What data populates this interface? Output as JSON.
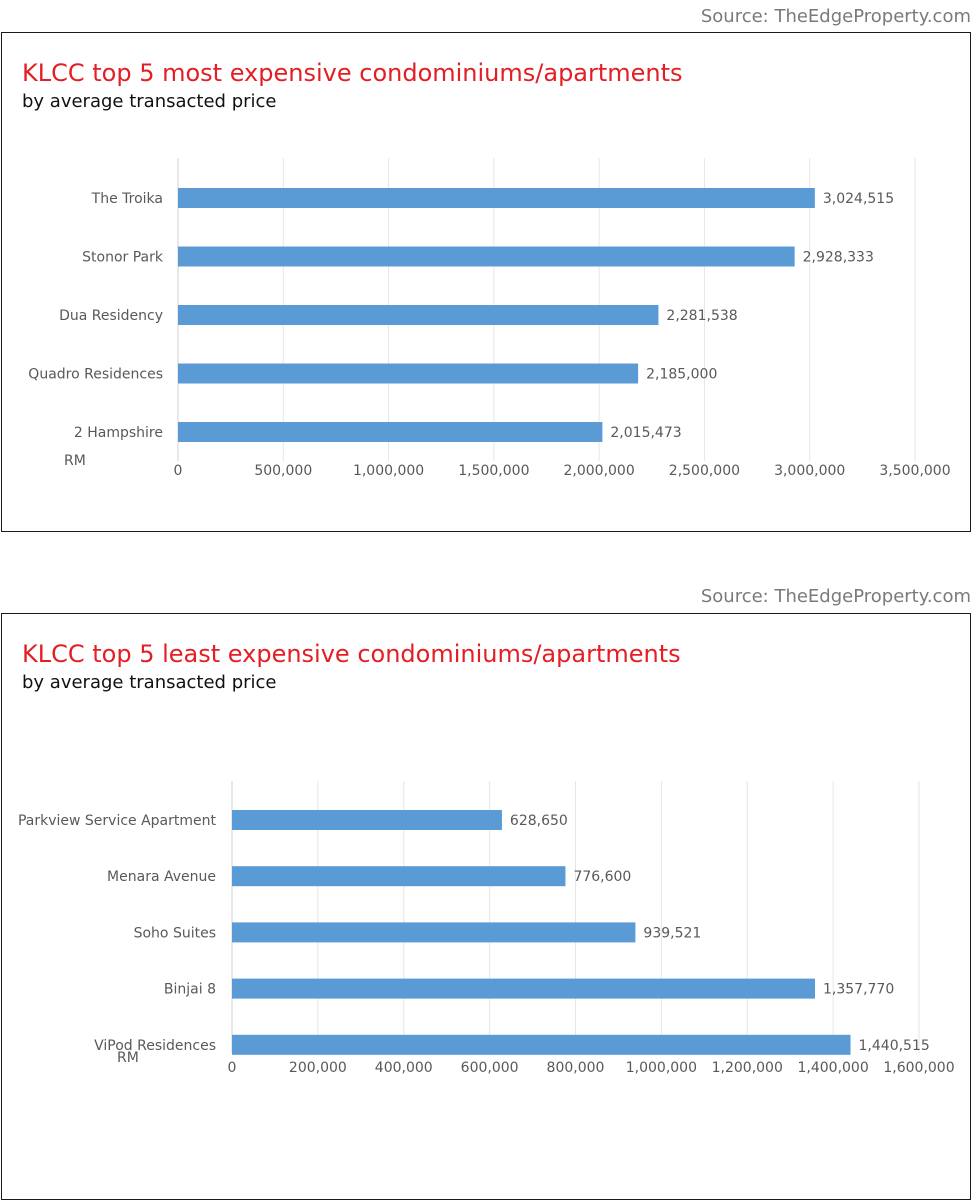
{
  "chart_data": [
    {
      "type": "bar",
      "orientation": "horizontal",
      "source": "Source: TheEdgeProperty.com",
      "title": "KLCC top 5 most expensive condominiums/apartments",
      "subtitle": "by average transacted price",
      "unit_label": "RM",
      "categories": [
        "The Troika",
        "Stonor Park",
        "Dua Residency",
        "Quadro Residences",
        "2 Hampshire"
      ],
      "values": [
        3024515,
        2928333,
        2281538,
        2185000,
        2015473
      ],
      "value_labels": [
        "3,024,515",
        "2,928,333",
        "2,281,538",
        "2,185,000",
        "2,015,473"
      ],
      "xlim": [
        0,
        3500000
      ],
      "ticks": [
        0,
        500000,
        1000000,
        1500000,
        2000000,
        2500000,
        3000000,
        3500000
      ],
      "tick_labels": [
        "0",
        "500,000",
        "1,000,000",
        "1,500,000",
        "2,000,000",
        "2,500,000",
        "3,000,000",
        "3,500,000"
      ],
      "grid": true,
      "bar_color": "#5b9bd5"
    },
    {
      "type": "bar",
      "orientation": "horizontal",
      "source": "Source: TheEdgeProperty.com",
      "title": "KLCC top 5 least expensive condominiums/apartments",
      "subtitle": "by average transacted price",
      "unit_label": "RM",
      "categories": [
        "Parkview Service Apartment",
        "Menara Avenue",
        "Soho Suites",
        "Binjai 8",
        "ViPod Residences"
      ],
      "values": [
        628650,
        776600,
        939521,
        1357770,
        1440515
      ],
      "value_labels": [
        "628,650",
        "776,600",
        "939,521",
        "1,357,770",
        "1,440,515"
      ],
      "xlim": [
        0,
        1600000
      ],
      "ticks": [
        0,
        200000,
        400000,
        600000,
        800000,
        1000000,
        1200000,
        1400000,
        1600000
      ],
      "tick_labels": [
        "0",
        "200,000",
        "400,000",
        "600,000",
        "800,000",
        "1,000,000",
        "1,200,000",
        "1,400,000",
        "1,600,000"
      ],
      "grid": true,
      "bar_color": "#5b9bd5"
    }
  ]
}
